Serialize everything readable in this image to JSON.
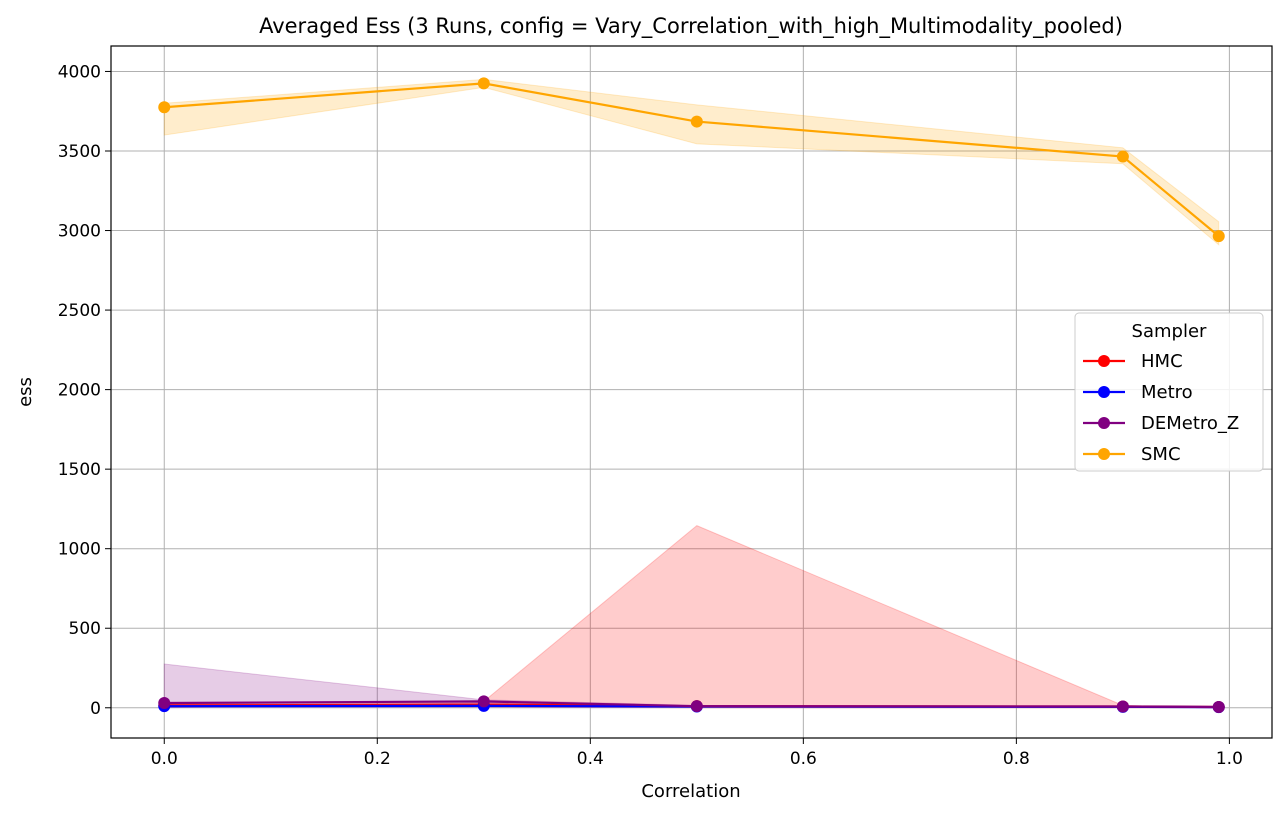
{
  "chart_data": {
    "type": "line",
    "title": "Averaged Ess (3 Runs, config = Vary_Correlation_with_high_Multimodality_pooled)",
    "xlabel": "Correlation",
    "ylabel": "ess",
    "x": [
      0.0,
      0.3,
      0.5,
      0.9,
      0.99
    ],
    "xlim": [
      -0.05,
      1.04
    ],
    "ylim": [
      -190,
      4160
    ],
    "xticks": [
      0.0,
      0.2,
      0.4,
      0.6,
      0.8,
      1.0
    ],
    "xtick_labels": [
      "0.0",
      "0.2",
      "0.4",
      "0.6",
      "0.8",
      "1.0"
    ],
    "yticks": [
      0,
      500,
      1000,
      1500,
      2000,
      2500,
      3000,
      3500,
      4000
    ],
    "ytick_labels": [
      "0",
      "500",
      "1000",
      "1500",
      "2000",
      "2500",
      "3000",
      "3500",
      "4000"
    ],
    "grid": true,
    "legend": {
      "title": "Sampler",
      "placement": "center-right"
    },
    "series": [
      {
        "name": "HMC",
        "color": "#ff0000",
        "values": [
          15,
          20,
          10,
          8,
          5
        ],
        "band_lower": [
          5,
          5,
          0,
          0,
          0
        ],
        "band_upper": [
          25,
          40,
          1145,
          15,
          10
        ]
      },
      {
        "name": "Metro",
        "color": "#0000ff",
        "values": [
          10,
          12,
          8,
          6,
          4
        ],
        "band_lower": [
          5,
          5,
          3,
          2,
          1
        ],
        "band_upper": [
          15,
          20,
          12,
          10,
          8
        ]
      },
      {
        "name": "DEMetro_Z",
        "color": "#800080",
        "values": [
          30,
          40,
          10,
          8,
          5
        ],
        "band_lower": [
          0,
          30,
          5,
          3,
          2
        ],
        "band_upper": [
          275,
          50,
          15,
          12,
          8
        ]
      },
      {
        "name": "SMC",
        "color": "#ffa500",
        "values": [
          3775,
          3925,
          3685,
          3465,
          2965
        ],
        "band_lower": [
          3600,
          3900,
          3545,
          3420,
          2910
        ],
        "band_upper": [
          3800,
          3950,
          3790,
          3520,
          3055
        ]
      }
    ]
  }
}
